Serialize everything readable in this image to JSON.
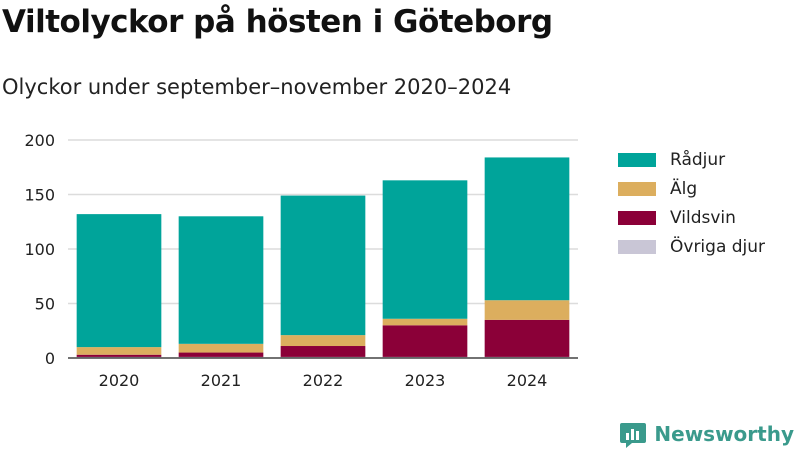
{
  "title": "Viltolyckor på hösten i Göteborg",
  "subtitle": "Olyckor under september–november 2020–2024",
  "brand": {
    "name": "Newsworthy",
    "color": "#3a9a8c"
  },
  "chart_data": {
    "type": "bar",
    "stacked": true,
    "categories": [
      "2020",
      "2021",
      "2022",
      "2023",
      "2024"
    ],
    "series": [
      {
        "name": "Övriga djur",
        "color": "#c9c6d6",
        "values": [
          1,
          1,
          1,
          1,
          1
        ]
      },
      {
        "name": "Vildsvin",
        "color": "#8b0038",
        "values": [
          2,
          4,
          10,
          29,
          34
        ]
      },
      {
        "name": "Älg",
        "color": "#dcae5e",
        "values": [
          7,
          8,
          10,
          6,
          18
        ]
      },
      {
        "name": "Rådjur",
        "color": "#00a49a",
        "values": [
          122,
          117,
          128,
          127,
          131
        ]
      }
    ],
    "legend_order": [
      "Rådjur",
      "Älg",
      "Vildsvin",
      "Övriga djur"
    ],
    "ylim": [
      0,
      200
    ],
    "yticks": [
      0,
      50,
      100,
      150,
      200
    ],
    "grid": true,
    "legend_position": "right"
  }
}
